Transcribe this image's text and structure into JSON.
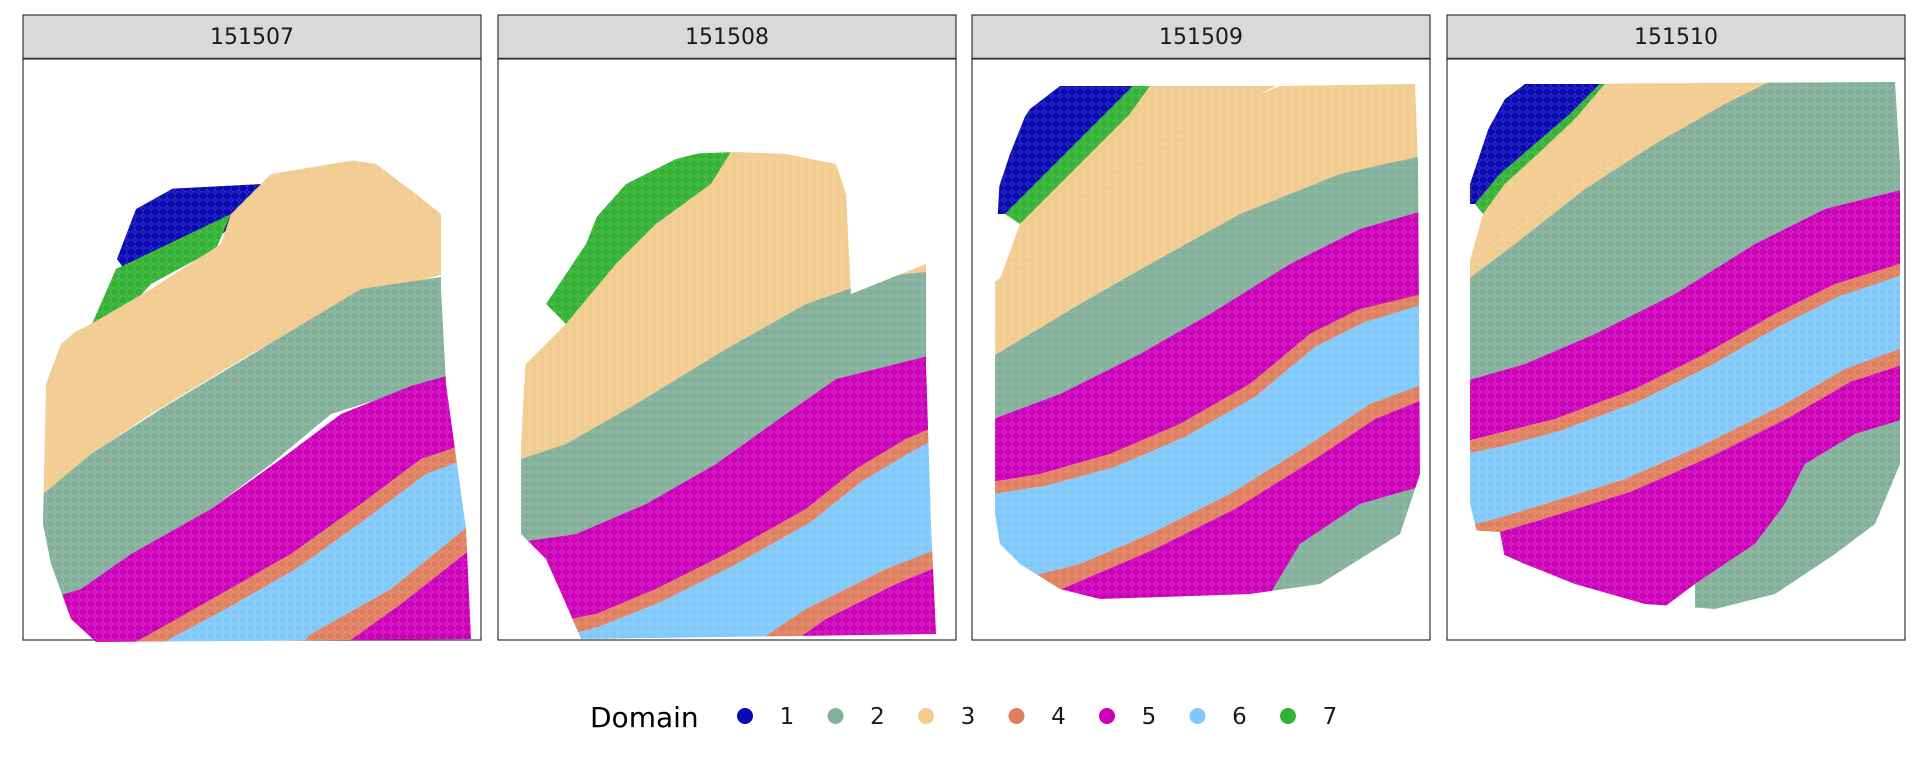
{
  "legend": {
    "title": "Domain",
    "items": [
      {
        "label": "1",
        "color": "#0a0ab4"
      },
      {
        "label": "2",
        "color": "#82b09a"
      },
      {
        "label": "3",
        "color": "#f2cb8f"
      },
      {
        "label": "4",
        "color": "#e07f5f"
      },
      {
        "label": "5",
        "color": "#cc00b8"
      },
      {
        "label": "6",
        "color": "#7fc8fa"
      },
      {
        "label": "7",
        "color": "#33b233"
      }
    ]
  },
  "chart_data": [
    {
      "type": "scatter",
      "title": "151507",
      "description_kind": "spatial domain map",
      "domains_present": [
        "1",
        "2",
        "3",
        "4",
        "5",
        "6",
        "7"
      ],
      "domain_order_top_left_to_bottom_right": [
        "1",
        "7",
        "3",
        "2",
        "5",
        "4",
        "6",
        "4",
        "5"
      ]
    },
    {
      "type": "scatter",
      "title": "151508",
      "domains_present": [
        "2",
        "3",
        "4",
        "5",
        "6",
        "7"
      ],
      "domain_order_top_left_to_bottom_right": [
        "7",
        "3",
        "2",
        "5",
        "4",
        "6",
        "4",
        "5"
      ]
    },
    {
      "type": "scatter",
      "title": "151509",
      "domains_present": [
        "1",
        "2",
        "3",
        "4",
        "5",
        "6",
        "7"
      ],
      "domain_order_top_left_to_bottom_right": [
        "1",
        "7",
        "3",
        "2",
        "5",
        "4",
        "6",
        "4",
        "5",
        "2"
      ]
    },
    {
      "type": "scatter",
      "title": "151510",
      "domains_present": [
        "1",
        "2",
        "3",
        "4",
        "5",
        "6",
        "7"
      ],
      "domain_order_top_left_to_bottom_right": [
        "1",
        "7",
        "3",
        "2",
        "5",
        "4",
        "6",
        "4",
        "5",
        "2"
      ]
    }
  ]
}
